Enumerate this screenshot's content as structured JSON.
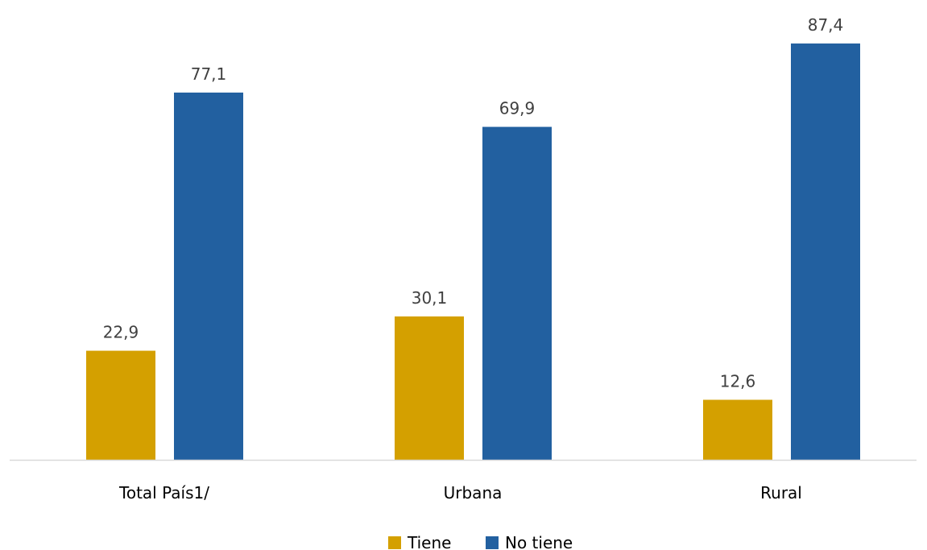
{
  "chart_data": {
    "type": "bar",
    "categories": [
      "Total País1/",
      "Urbana",
      "Rural"
    ],
    "series": [
      {
        "name": "Tiene",
        "values": [
          22.9,
          30.1,
          12.6
        ],
        "labels": [
          "22,9",
          "30,1",
          "12,6"
        ],
        "color": "#D4A000"
      },
      {
        "name": "No tiene",
        "values": [
          77.1,
          69.9,
          87.4
        ],
        "labels": [
          "77,1",
          "69,9",
          "87,4"
        ],
        "color": "#2260A0"
      }
    ],
    "title": "",
    "xlabel": "",
    "ylabel": "",
    "ylim": [
      0,
      90
    ],
    "grid": false,
    "legend": "bottom-center",
    "axis_color": "#D9D9D9"
  }
}
